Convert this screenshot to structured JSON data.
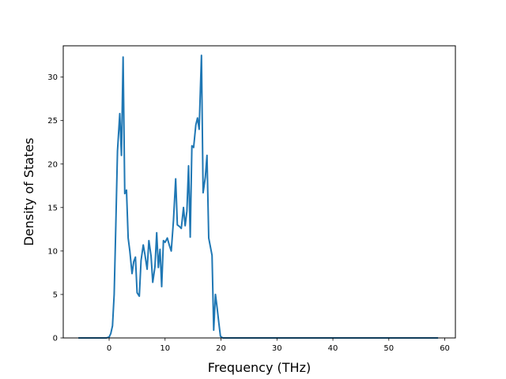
{
  "chart_data": {
    "type": "line",
    "title": "",
    "xlabel": "Frequency (THz)",
    "ylabel": "Density of States",
    "xlim": [
      -8.2,
      61.9
    ],
    "ylim": [
      0,
      33.6
    ],
    "xticks": [
      0,
      10,
      20,
      30,
      40,
      50,
      60
    ],
    "yticks": [
      0,
      5,
      10,
      15,
      20,
      25,
      30
    ],
    "grid": false,
    "legend": "none",
    "colors": {
      "line": "#1f77b4",
      "axes": "#000000",
      "background": "#ffffff"
    },
    "series": [
      {
        "points": [
          [
            -5.5,
            0
          ],
          [
            -4.5,
            0
          ],
          [
            -3.5,
            0
          ],
          [
            -2.5,
            0
          ],
          [
            -1.5,
            0
          ],
          [
            -0.5,
            0
          ],
          [
            0.0,
            0.1
          ],
          [
            0.3,
            0.5
          ],
          [
            0.6,
            1.4
          ],
          [
            0.9,
            5.0
          ],
          [
            1.2,
            13.0
          ],
          [
            1.5,
            21.5
          ],
          [
            1.9,
            25.8
          ],
          [
            2.2,
            21.0
          ],
          [
            2.5,
            32.3
          ],
          [
            2.8,
            16.6
          ],
          [
            3.1,
            17.0
          ],
          [
            3.4,
            11.5
          ],
          [
            3.7,
            10.0
          ],
          [
            4.1,
            7.4
          ],
          [
            4.4,
            8.8
          ],
          [
            4.7,
            9.3
          ],
          [
            5.0,
            5.2
          ],
          [
            5.4,
            4.8
          ],
          [
            5.7,
            8.9
          ],
          [
            6.1,
            10.7
          ],
          [
            6.4,
            9.6
          ],
          [
            6.8,
            7.9
          ],
          [
            7.1,
            11.2
          ],
          [
            7.5,
            9.4
          ],
          [
            7.8,
            6.4
          ],
          [
            8.2,
            8.2
          ],
          [
            8.5,
            12.1
          ],
          [
            8.8,
            8.1
          ],
          [
            9.1,
            10.2
          ],
          [
            9.4,
            5.9
          ],
          [
            9.7,
            11.2
          ],
          [
            10.0,
            11.0
          ],
          [
            10.4,
            11.5
          ],
          [
            10.8,
            10.6
          ],
          [
            11.1,
            10.0
          ],
          [
            11.5,
            13.5
          ],
          [
            11.9,
            18.3
          ],
          [
            12.2,
            13.0
          ],
          [
            12.6,
            12.8
          ],
          [
            12.9,
            12.6
          ],
          [
            13.3,
            15.0
          ],
          [
            13.6,
            12.9
          ],
          [
            13.9,
            14.6
          ],
          [
            14.2,
            19.8
          ],
          [
            14.5,
            11.6
          ],
          [
            14.8,
            22.1
          ],
          [
            15.1,
            21.9
          ],
          [
            15.5,
            24.5
          ],
          [
            15.8,
            25.3
          ],
          [
            16.1,
            24.0
          ],
          [
            16.5,
            32.5
          ],
          [
            16.8,
            16.7
          ],
          [
            17.2,
            18.5
          ],
          [
            17.5,
            21.0
          ],
          [
            17.8,
            11.5
          ],
          [
            18.1,
            10.5
          ],
          [
            18.4,
            9.5
          ],
          [
            18.7,
            0.9
          ],
          [
            19.0,
            5.0
          ],
          [
            19.3,
            3.5
          ],
          [
            19.6,
            1.8
          ],
          [
            19.9,
            0.2
          ],
          [
            20.3,
            0
          ],
          [
            25,
            0
          ],
          [
            30,
            0
          ],
          [
            35,
            0
          ],
          [
            40,
            0
          ],
          [
            45,
            0
          ],
          [
            50,
            0
          ],
          [
            55,
            0
          ],
          [
            58.8,
            0
          ]
        ]
      }
    ]
  }
}
